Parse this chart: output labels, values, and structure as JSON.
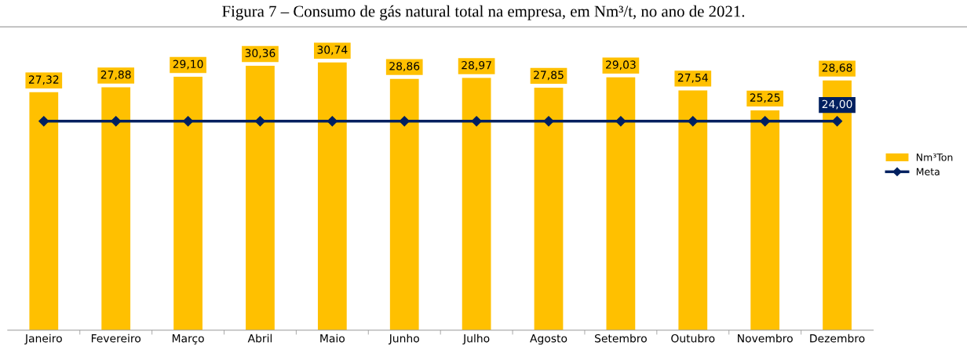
{
  "chart_data": {
    "type": "bar",
    "title": "Figura 7 – Consumo de gás natural total na empresa, em Nm³/t, no ano de 2021.",
    "categories": [
      "Janeiro",
      "Fevereiro",
      "Março",
      "Abril",
      "Maio",
      "Junho",
      "Julho",
      "Agosto",
      "Setembro",
      "Outubro",
      "Novembro",
      "Dezembro"
    ],
    "series": [
      {
        "name": "Nm³Ton",
        "color": "#ffc000",
        "values": [
          27.32,
          27.88,
          29.1,
          30.36,
          30.74,
          28.86,
          28.97,
          27.85,
          29.03,
          27.54,
          25.25,
          28.68
        ],
        "value_labels": [
          "27,32",
          "27,88",
          "29,10",
          "30,36",
          "30,74",
          "28,86",
          "28,97",
          "27,85",
          "29,03",
          "27,54",
          "25,25",
          "28,68"
        ]
      },
      {
        "name": "Meta",
        "type": "line",
        "color": "#002060",
        "marker": "diamond",
        "values": [
          24,
          24,
          24,
          24,
          24,
          24,
          24,
          24,
          24,
          24,
          24,
          24
        ],
        "value_labels": [
          null,
          null,
          null,
          null,
          null,
          null,
          null,
          null,
          null,
          null,
          null,
          "24,00"
        ]
      }
    ],
    "tick_labels": "x",
    "grid": false,
    "legend": "right"
  }
}
